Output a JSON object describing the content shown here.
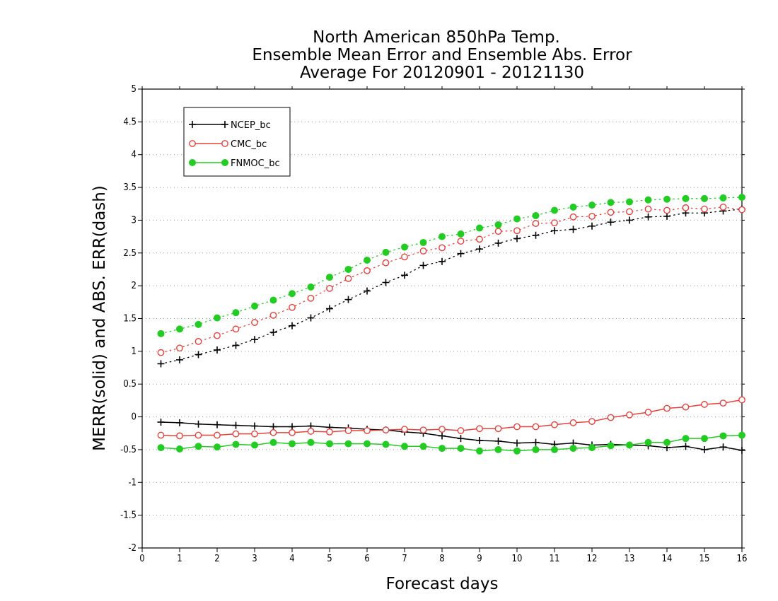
{
  "chart_data": {
    "type": "line",
    "title": [
      "North American 850hPa Temp.",
      "Ensemble Mean Error and Ensemble Abs. Error",
      "Average For 20120901 - 20121130"
    ],
    "xlabel": "Forecast days",
    "ylabel": "MERR(solid) and ABS. ERR(dash)",
    "xlim": [
      0,
      16
    ],
    "ylim": [
      -2,
      5
    ],
    "xticks": [
      0,
      1,
      2,
      3,
      4,
      5,
      6,
      7,
      8,
      9,
      10,
      11,
      12,
      13,
      14,
      15,
      16
    ],
    "yticks": [
      -2,
      -1.5,
      -1,
      -0.5,
      0,
      0.5,
      1,
      1.5,
      2,
      2.5,
      3,
      3.5,
      4,
      4.5,
      5
    ],
    "grid": "horizontal dotted",
    "legend_placement": "top-left",
    "x": [
      0.5,
      1,
      1.5,
      2,
      2.5,
      3,
      3.5,
      4,
      4.5,
      5,
      5.5,
      6,
      6.5,
      7,
      7.5,
      8,
      8.5,
      9,
      9.5,
      10,
      10.5,
      11,
      11.5,
      12,
      12.5,
      13,
      13.5,
      14,
      14.5,
      15,
      15.5,
      16
    ],
    "series": [
      {
        "name": "NCEP_bc",
        "color": "#000000",
        "marker": "plus",
        "merr": [
          -0.08,
          -0.09,
          -0.11,
          -0.12,
          -0.13,
          -0.14,
          -0.15,
          -0.15,
          -0.14,
          -0.16,
          -0.17,
          -0.19,
          -0.2,
          -0.23,
          -0.25,
          -0.29,
          -0.33,
          -0.36,
          -0.37,
          -0.4,
          -0.39,
          -0.42,
          -0.4,
          -0.43,
          -0.42,
          -0.43,
          -0.44,
          -0.47,
          -0.45,
          -0.5,
          -0.46,
          -0.51
        ],
        "abs_err": [
          0.81,
          0.87,
          0.95,
          1.02,
          1.09,
          1.18,
          1.29,
          1.39,
          1.51,
          1.65,
          1.79,
          1.92,
          2.05,
          2.16,
          2.31,
          2.37,
          2.49,
          2.56,
          2.65,
          2.72,
          2.77,
          2.84,
          2.86,
          2.91,
          2.97,
          3.0,
          3.05,
          3.06,
          3.11,
          3.11,
          3.14,
          3.17
        ]
      },
      {
        "name": "CMC_bc",
        "color": "#e8403a",
        "marker": "open-circle",
        "merr": [
          -0.28,
          -0.29,
          -0.28,
          -0.28,
          -0.26,
          -0.26,
          -0.24,
          -0.24,
          -0.22,
          -0.23,
          -0.21,
          -0.21,
          -0.2,
          -0.19,
          -0.2,
          -0.19,
          -0.21,
          -0.18,
          -0.18,
          -0.15,
          -0.15,
          -0.12,
          -0.09,
          -0.07,
          -0.01,
          0.03,
          0.07,
          0.13,
          0.15,
          0.19,
          0.21,
          0.26
        ],
        "abs_err": [
          0.98,
          1.05,
          1.15,
          1.24,
          1.34,
          1.44,
          1.55,
          1.67,
          1.81,
          1.96,
          2.11,
          2.23,
          2.35,
          2.44,
          2.53,
          2.58,
          2.68,
          2.71,
          2.83,
          2.84,
          2.95,
          2.96,
          3.05,
          3.06,
          3.12,
          3.13,
          3.17,
          3.15,
          3.19,
          3.17,
          3.2,
          3.16
        ]
      },
      {
        "name": "FNMOC_bc",
        "color": "#22cc22",
        "marker": "filled-circle",
        "merr": [
          -0.47,
          -0.49,
          -0.45,
          -0.46,
          -0.42,
          -0.43,
          -0.39,
          -0.41,
          -0.39,
          -0.41,
          -0.41,
          -0.41,
          -0.42,
          -0.45,
          -0.45,
          -0.48,
          -0.48,
          -0.52,
          -0.5,
          -0.52,
          -0.5,
          -0.5,
          -0.48,
          -0.47,
          -0.44,
          -0.43,
          -0.39,
          -0.39,
          -0.33,
          -0.33,
          -0.29,
          -0.28
        ],
        "abs_err": [
          1.27,
          1.34,
          1.41,
          1.51,
          1.59,
          1.69,
          1.78,
          1.88,
          1.98,
          2.13,
          2.25,
          2.39,
          2.51,
          2.59,
          2.66,
          2.75,
          2.79,
          2.88,
          2.93,
          3.02,
          3.07,
          3.15,
          3.2,
          3.23,
          3.27,
          3.28,
          3.31,
          3.32,
          3.33,
          3.33,
          3.34,
          3.35
        ]
      }
    ]
  }
}
